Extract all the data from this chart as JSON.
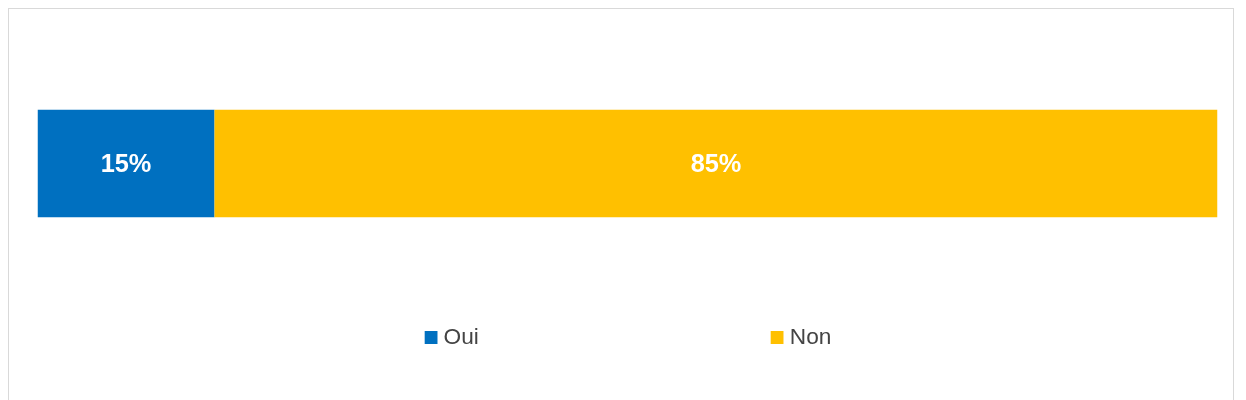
{
  "chart_data": {
    "type": "bar",
    "orientation": "horizontal",
    "stacked": true,
    "categories": [
      null
    ],
    "series": [
      {
        "name": "Oui",
        "color": "#0070c0",
        "values": [
          15
        ],
        "value_labels": [
          "15%"
        ]
      },
      {
        "name": "Non",
        "color": "#ffc000",
        "values": [
          85
        ],
        "value_labels": [
          "85%"
        ]
      }
    ],
    "xlim": [
      0,
      100
    ],
    "tick_labels": false,
    "legend": "bottom"
  }
}
